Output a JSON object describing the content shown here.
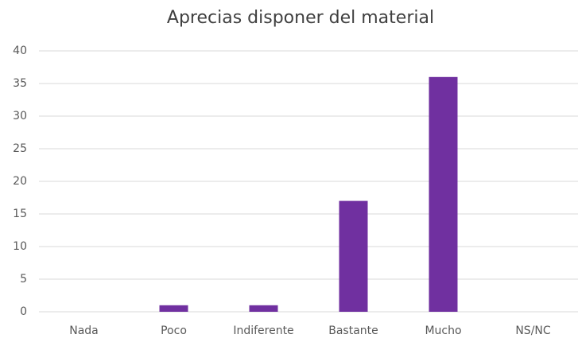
{
  "chart_data": {
    "type": "bar",
    "title": "Aprecias disponer del material",
    "categories": [
      "Nada",
      "Poco",
      "Indiferente",
      "Bastante",
      "Mucho",
      "NS/NC"
    ],
    "values": [
      0,
      1,
      1,
      17,
      36,
      0
    ],
    "color": "#7030a0",
    "ylim": [
      0,
      40
    ],
    "yticks": [
      0,
      5,
      10,
      15,
      20,
      25,
      30,
      35,
      40
    ],
    "grid": true
  }
}
